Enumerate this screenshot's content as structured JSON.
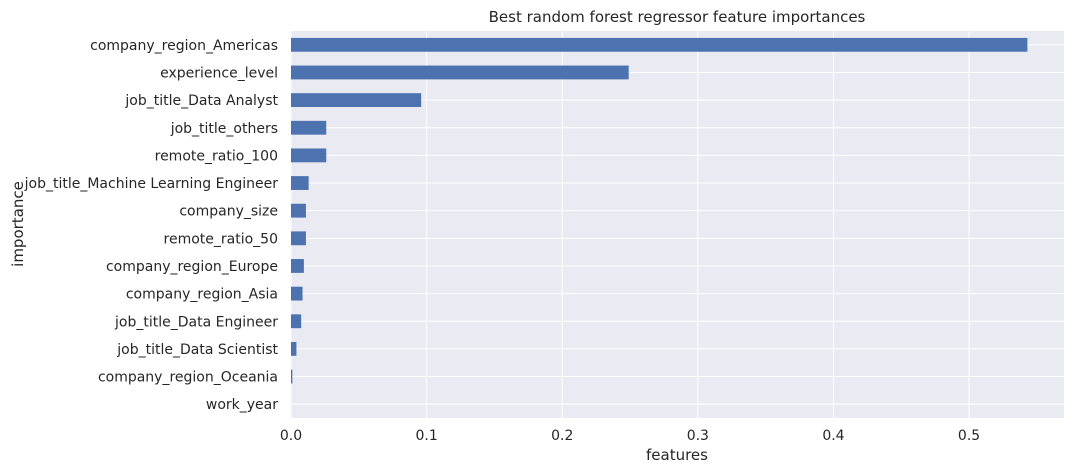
{
  "chart_data": {
    "type": "bar",
    "orientation": "horizontal",
    "title": "Best random forest regressor feature importances",
    "xlabel": "features",
    "ylabel": "importance",
    "categories": [
      "company_region_Americas",
      "experience_level",
      "job_title_Data Analyst",
      "job_title_others",
      "remote_ratio_100",
      "job_title_Machine Learning Engineer",
      "company_size",
      "remote_ratio_50",
      "company_region_Europe",
      "company_region_Asia",
      "job_title_Data Engineer",
      "job_title_Data Scientist",
      "company_region_Oceania",
      "work_year"
    ],
    "values": [
      0.543,
      0.249,
      0.096,
      0.026,
      0.026,
      0.013,
      0.011,
      0.011,
      0.0095,
      0.0085,
      0.0075,
      0.004,
      0.001,
      0.0
    ],
    "xlim": [
      0,
      0.57
    ],
    "xticks": [
      "0.0",
      "0.1",
      "0.2",
      "0.3",
      "0.4",
      "0.5"
    ],
    "grid": true,
    "colors": {
      "bar": "#4c72b0",
      "background": "#eaeaf2",
      "grid": "#ffffff"
    }
  }
}
